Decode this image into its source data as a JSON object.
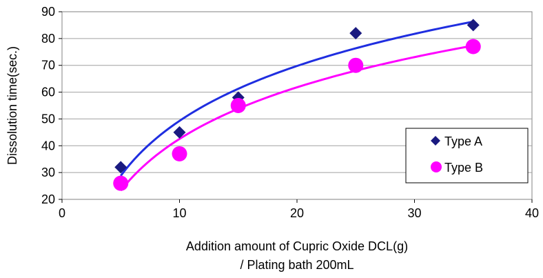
{
  "chart_data": {
    "type": "scatter",
    "xlabel": "Addition amount of Cupric Oxide DCL(g)",
    "xlabel_line2": "/ Plating bath 200mL",
    "ylabel": "Dissolution time(sec.)",
    "xlim": [
      0,
      40
    ],
    "ylim": [
      20,
      90
    ],
    "xticks": [
      0,
      10,
      20,
      30,
      40
    ],
    "yticks": [
      20,
      30,
      40,
      50,
      60,
      70,
      80,
      90
    ],
    "grid": "horizontal",
    "plot_background": "#ffffff",
    "legend_position": "right",
    "series": [
      {
        "name": "Type A",
        "marker": "diamond",
        "color": "#1a1a80",
        "trend_color": "#1f2ee0",
        "trendline": "logarithmic",
        "x": [
          5,
          10,
          15,
          25,
          35
        ],
        "y": [
          32,
          45,
          58,
          82,
          85
        ]
      },
      {
        "name": "Type B",
        "marker": "circle",
        "color": "#ff00ff",
        "trend_color": "#ff00ff",
        "trendline": "logarithmic",
        "x": [
          5,
          10,
          15,
          25,
          35
        ],
        "y": [
          26,
          37,
          55,
          70,
          77
        ]
      }
    ]
  }
}
